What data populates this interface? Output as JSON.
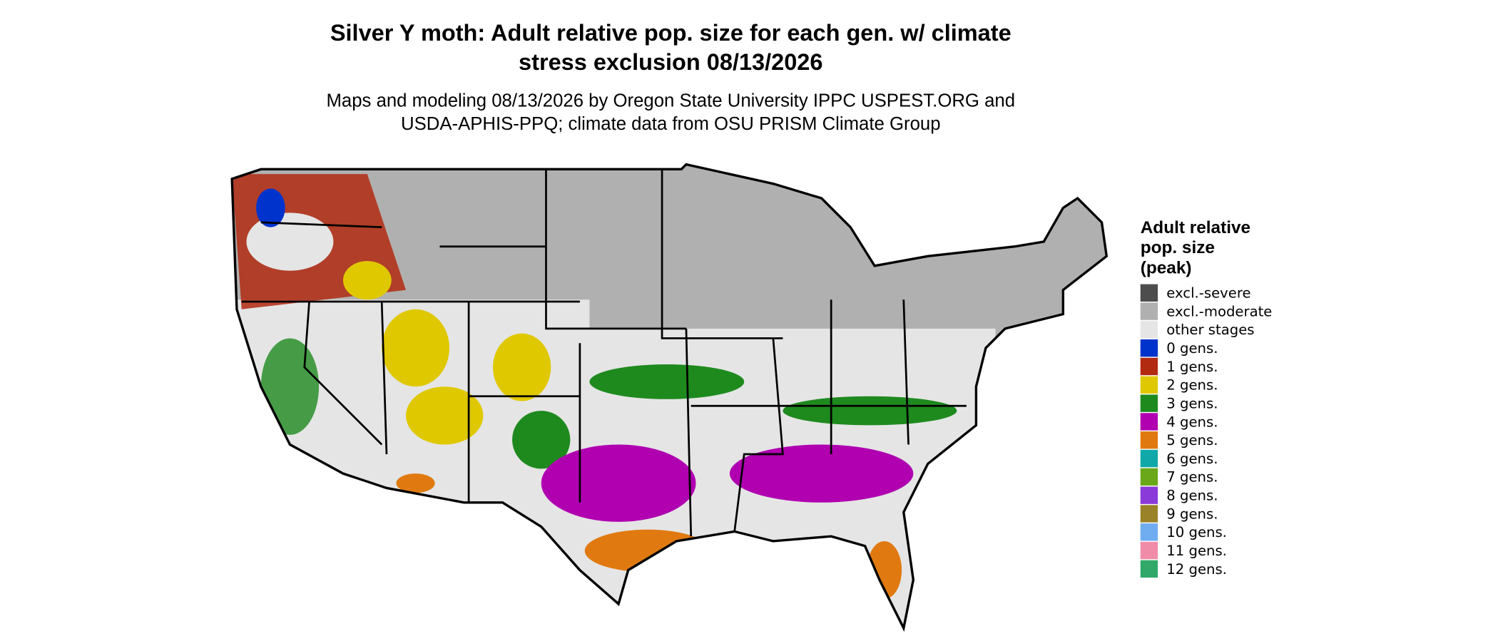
{
  "header": {
    "title": [
      "Silver Y moth: Adult relative pop. size for each gen. w/ climate",
      "stress exclusion 08/13/2026"
    ],
    "subtitle": [
      "Maps and modeling 08/13/2026 by Oregon State University IPPC USPEST.ORG and",
      "USDA-APHIS-PPQ; climate data from OSU PRISM Climate Group"
    ]
  },
  "legend": {
    "title": [
      "Adult relative",
      "pop. size",
      "(peak)"
    ],
    "items": [
      {
        "label": "excl.-severe",
        "color": "#4d4d4d"
      },
      {
        "label": "excl.-moderate",
        "color": "#b0b0b0"
      },
      {
        "label": "other stages",
        "color": "#e5e5e5"
      },
      {
        "label": "0 gens.",
        "color": "#0033cc"
      },
      {
        "label": "1 gens.",
        "color": "#b22a10"
      },
      {
        "label": "2 gens.",
        "color": "#e0c800"
      },
      {
        "label": "3 gens.",
        "color": "#1e8a1e"
      },
      {
        "label": "4 gens.",
        "color": "#b000b0"
      },
      {
        "label": "5 gens.",
        "color": "#e07a10"
      },
      {
        "label": "6 gens.",
        "color": "#10a8a8"
      },
      {
        "label": "7 gens.",
        "color": "#6aa81a"
      },
      {
        "label": "8 gens.",
        "color": "#8a3ad8"
      },
      {
        "label": "9 gens.",
        "color": "#9a8228"
      },
      {
        "label": "10 gens.",
        "color": "#70acf0"
      },
      {
        "label": "11 gens.",
        "color": "#f08ca8"
      },
      {
        "label": "12 gens.",
        "color": "#30a86a"
      }
    ]
  }
}
